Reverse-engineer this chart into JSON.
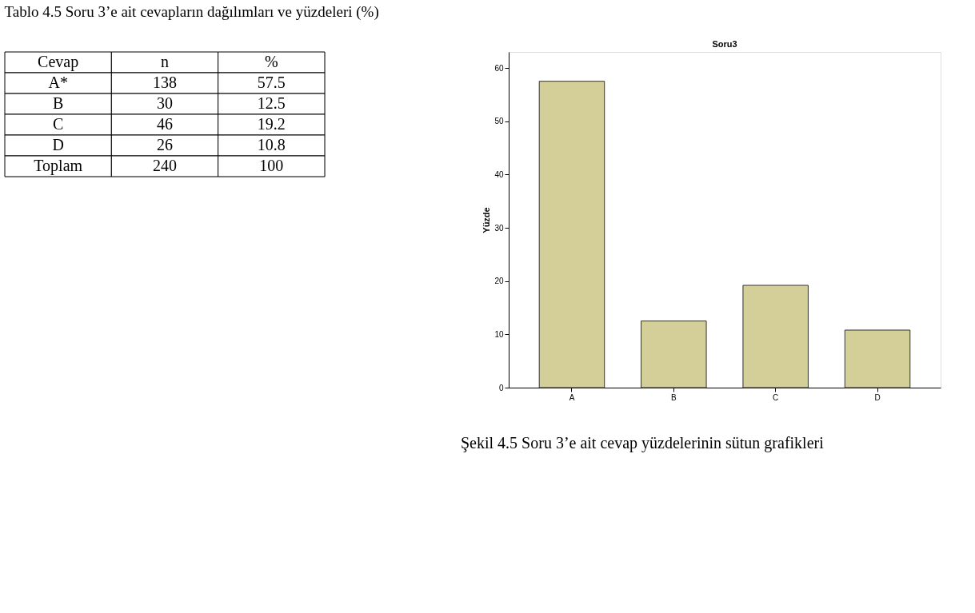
{
  "chart_data": [
    {
      "type": "other",
      "title": "Tablo 4.5 Soru 3’e ait cevapların dağılımları ve yüzdeleri (%)",
      "annotations": [
        "Cevap",
        "n",
        "%",
        "A*",
        "138",
        "57.5",
        "B",
        "30",
        "12.5",
        "C",
        "46",
        "19.2",
        "D",
        "26",
        "10.8",
        "Toplam",
        "240",
        "100"
      ]
    },
    {
      "type": "bar",
      "title": "Soru3",
      "ylabel": "Yüzde",
      "categories": [
        "A",
        "B",
        "C",
        "D"
      ],
      "values": [
        57.5,
        12.5,
        19.2,
        10.8
      ],
      "color": "#d4cf98",
      "ylim": [
        0,
        63
      ],
      "yticks": [
        0,
        10,
        20,
        30,
        40,
        50,
        60
      ],
      "grid": false,
      "annotations": [
        "Şekil 4.5  Soru 3’e ait cevap yüzdelerinin sütun grafikleri"
      ]
    }
  ]
}
